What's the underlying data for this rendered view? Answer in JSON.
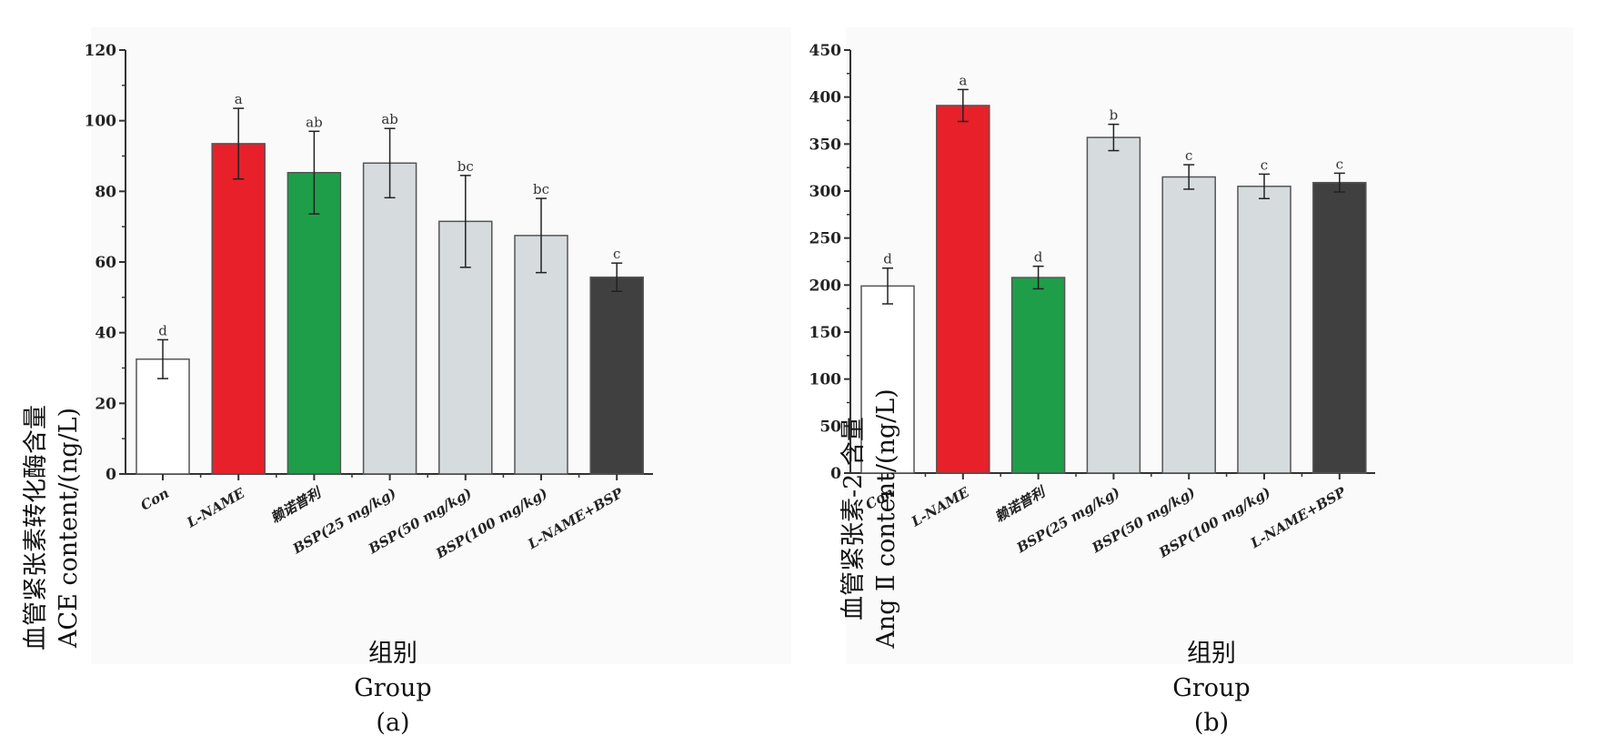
{
  "chart_data": [
    {
      "id": "a",
      "type": "bar",
      "panel_label": "(a)",
      "ylabel_cn": "血管紧张素转化酶含量",
      "ylabel_en": "ACE  content/(ng/L)",
      "xlabel_cn": "组别",
      "xlabel_en": "Group",
      "ylim": [
        0,
        120
      ],
      "yticks": [
        "0",
        "20",
        "40",
        "60",
        "80",
        "100",
        "120"
      ],
      "categories": [
        "Con",
        "L-NAME",
        "赖诺普利",
        "BSP(25 mg/kg)",
        "BSP(50 mg/kg)",
        "BSP(100 mg/kg)",
        "L-NAME+BSP"
      ],
      "values": [
        32.5,
        93.5,
        85.3,
        88.0,
        71.5,
        67.5,
        55.7
      ],
      "errors": [
        5.5,
        10.0,
        11.7,
        9.8,
        13.0,
        10.5,
        4.0
      ],
      "significance": [
        "d",
        "a",
        "ab",
        "ab",
        "bc",
        "bc",
        "c"
      ],
      "colors": [
        "#ffffff",
        "#e8202a",
        "#1f9e4a",
        "#d6dbde",
        "#d6dbde",
        "#d6dbde",
        "#404040"
      ]
    },
    {
      "id": "b",
      "type": "bar",
      "panel_label": "(b)",
      "ylabel_cn": "血管紧张素-2 含量",
      "ylabel_en": "Ang Ⅱ  content/(ng/L)",
      "xlabel_cn": "组别",
      "xlabel_en": "Group",
      "ylim": [
        0,
        450
      ],
      "yticks": [
        "0",
        "50",
        "100",
        "150",
        "200",
        "250",
        "300",
        "350",
        "400",
        "450"
      ],
      "categories": [
        "Con",
        "L-NAME",
        "赖诺普利",
        "BSP(25 mg/kg)",
        "BSP(50 mg/kg)",
        "BSP(100 mg/kg)",
        "L-NAME+BSP"
      ],
      "values": [
        199,
        391,
        208,
        357,
        315,
        305,
        309
      ],
      "errors": [
        19,
        17,
        12,
        14,
        13,
        13,
        10
      ],
      "significance": [
        "d",
        "a",
        "d",
        "b",
        "c",
        "c",
        "c"
      ],
      "colors": [
        "#ffffff",
        "#e8202a",
        "#1f9e4a",
        "#d6dbde",
        "#d6dbde",
        "#d6dbde",
        "#404040"
      ]
    }
  ]
}
